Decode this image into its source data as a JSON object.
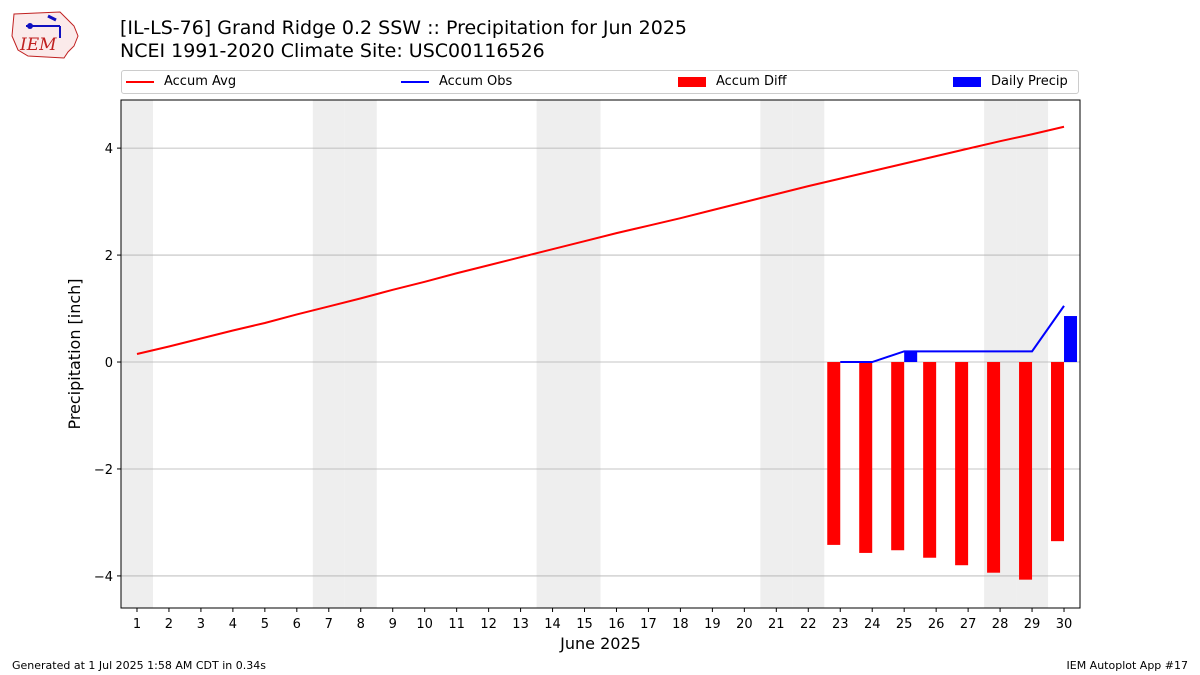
{
  "header": {
    "logo_text": "IEM",
    "title_line1": "[IL-LS-76] Grand Ridge 0.2 SSW :: Precipitation for Jun 2025",
    "title_line2": "NCEI 1991-2020 Climate Site: USC00116526"
  },
  "footer": {
    "left": "Generated at 1 Jul 2025 1:58 AM CDT in 0.34s",
    "right": "IEM Autoplot App #17"
  },
  "colors": {
    "avg": "#ff0000",
    "obs": "#0000ff",
    "diff": "#ff0000",
    "daily": "#0000ff",
    "weekend_band": "#eeeeee",
    "grid": "#b0b0b0"
  },
  "chart_data": {
    "type": "bar",
    "xlabel": "June 2025",
    "ylabel": "Precipitation [inch]",
    "ylim": [
      -4.6,
      4.9
    ],
    "xlim": [
      0.5,
      30.5
    ],
    "yticks": [
      -4,
      -2,
      0,
      2,
      4
    ],
    "ytick_labels": [
      "−4",
      "−2",
      "0",
      "2",
      "4"
    ],
    "days": [
      1,
      2,
      3,
      4,
      5,
      6,
      7,
      8,
      9,
      10,
      11,
      12,
      13,
      14,
      15,
      16,
      17,
      18,
      19,
      20,
      21,
      22,
      23,
      24,
      25,
      26,
      27,
      28,
      29,
      30
    ],
    "weekend_days": [
      1,
      7,
      8,
      14,
      15,
      21,
      22,
      28,
      29
    ],
    "grid": "horizontal",
    "legend_position": "top",
    "series": [
      {
        "name": "Accum Avg",
        "kind": "line",
        "x": [
          1,
          2,
          3,
          4,
          5,
          6,
          7,
          8,
          9,
          10,
          11,
          12,
          13,
          14,
          15,
          16,
          17,
          18,
          19,
          20,
          21,
          22,
          23,
          24,
          25,
          26,
          27,
          28,
          29,
          30
        ],
        "values": [
          0.15,
          0.29,
          0.44,
          0.59,
          0.73,
          0.89,
          1.04,
          1.19,
          1.35,
          1.5,
          1.66,
          1.81,
          1.96,
          2.11,
          2.26,
          2.41,
          2.55,
          2.69,
          2.84,
          2.99,
          3.14,
          3.29,
          3.43,
          3.57,
          3.71,
          3.85,
          3.99,
          4.13,
          4.26,
          4.4
        ]
      },
      {
        "name": "Accum Obs",
        "kind": "line",
        "x": [
          23,
          24,
          25,
          26,
          27,
          28,
          29,
          30
        ],
        "values": [
          0.0,
          0.0,
          0.2,
          0.2,
          0.2,
          0.2,
          0.2,
          1.05
        ]
      },
      {
        "name": "Accum Diff",
        "kind": "bar",
        "x": [
          23,
          24,
          25,
          26,
          27,
          28,
          29,
          30
        ],
        "values": [
          -3.42,
          -3.57,
          -3.52,
          -3.66,
          -3.8,
          -3.94,
          -4.07,
          -3.35
        ]
      },
      {
        "name": "Daily Precip",
        "kind": "bar",
        "x": [
          25,
          30
        ],
        "values": [
          0.2,
          0.86
        ]
      }
    ]
  }
}
